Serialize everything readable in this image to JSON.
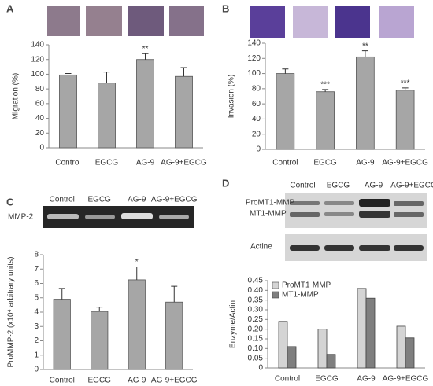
{
  "chart_data": [
    {
      "type": "bar",
      "panel": "A",
      "ylabel": "Migration (%)",
      "categories": [
        "Control",
        "EGCG",
        "AG-9",
        "AG-9+EGCG"
      ],
      "values": [
        99,
        88,
        120,
        97
      ],
      "errors": [
        2,
        15,
        8,
        12
      ],
      "significance": [
        null,
        null,
        "**",
        null
      ],
      "color": "#a6a6a6",
      "ylim": [
        0,
        140
      ],
      "yticks": [
        0,
        20,
        40,
        60,
        80,
        100,
        120,
        140
      ]
    },
    {
      "type": "bar",
      "panel": "B",
      "ylabel": "Invasion (%)",
      "categories": [
        "Control",
        "EGCG",
        "AG-9",
        "AG-9+EGCG"
      ],
      "values": [
        100,
        76,
        122,
        78
      ],
      "errors": [
        6,
        3,
        8,
        3
      ],
      "significance": [
        null,
        "***",
        "**",
        "***"
      ],
      "color": "#a6a6a6",
      "ylim": [
        0,
        140
      ],
      "yticks": [
        0,
        20,
        40,
        60,
        80,
        100,
        120,
        140
      ]
    },
    {
      "type": "bar",
      "panel": "C",
      "ylabel": "ProMMP-2 (x10⁴ arbitrary units)",
      "gel_label": "MMP-2",
      "categories": [
        "Control",
        "EGCG",
        "AG-9",
        "AG-9+EGCG"
      ],
      "values": [
        4.9,
        4.05,
        6.25,
        4.7
      ],
      "errors": [
        0.75,
        0.3,
        0.9,
        1.1
      ],
      "significance": [
        null,
        null,
        "*",
        null
      ],
      "color": "#a6a6a6",
      "ylim": [
        0,
        8
      ],
      "yticks": [
        0,
        1,
        2,
        3,
        4,
        5,
        6,
        7,
        8
      ]
    },
    {
      "type": "grouped_bar",
      "panel": "D",
      "ylabel": "Enzyme/Actin",
      "blot_labels": [
        "ProMT1-MMP",
        "MT1-MMP",
        "Actine"
      ],
      "categories": [
        "Control",
        "EGCG",
        "AG-9",
        "AG-9+EGCG"
      ],
      "series": [
        {
          "name": "ProMT1-MMP",
          "color": "#d4d4d4",
          "values": [
            0.24,
            0.2,
            0.41,
            0.215
          ]
        },
        {
          "name": "MT1-MMP",
          "color": "#7f7f7f",
          "values": [
            0.11,
            0.07,
            0.36,
            0.155
          ]
        }
      ],
      "legend": "upper left",
      "ylim": [
        0,
        0.45
      ],
      "yticks": [
        0,
        0.05,
        {
          "value": 0.1,
          "label": "0.10"
        },
        0.15,
        {
          "value": 0.2,
          "label": "0.20"
        },
        0.25,
        {
          "value": 0.3,
          "label": "0.30"
        },
        0.35,
        {
          "value": 0.4,
          "label": "0.40"
        },
        0.45
      ]
    }
  ]
}
